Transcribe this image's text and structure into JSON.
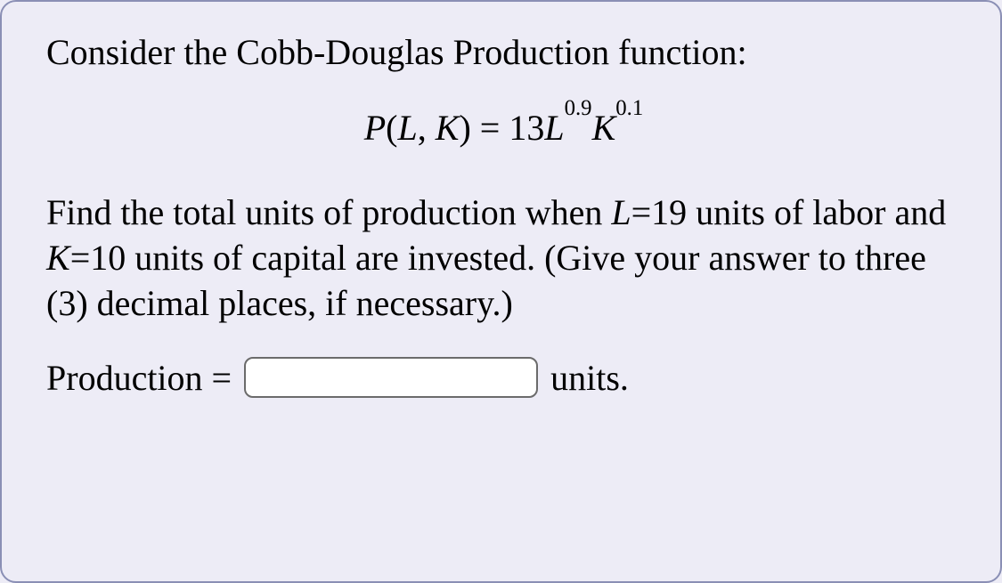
{
  "intro_text": "Consider the Cobb-Douglas Production function:",
  "equation": {
    "lhs_fn": "P",
    "lhs_args_open": "(",
    "lhs_arg1": "L",
    "lhs_comma": ", ",
    "lhs_arg2": "K",
    "lhs_args_close": ")",
    "eq_sign": "=",
    "coeff": "13",
    "var1": "L",
    "exp1": "0.9",
    "var2": "K",
    "exp2": "0.1"
  },
  "body": {
    "p1_a": "Find the total units of production when ",
    "p1_L": "L",
    "p1_b": "=19 units of labor and ",
    "p1_K": "K",
    "p1_c": "=10 units of capital are invested. (Give your answer to three (3) decimal places, if necessary.)"
  },
  "answer": {
    "label": "Production =",
    "input_value": "",
    "units_after": "units."
  }
}
